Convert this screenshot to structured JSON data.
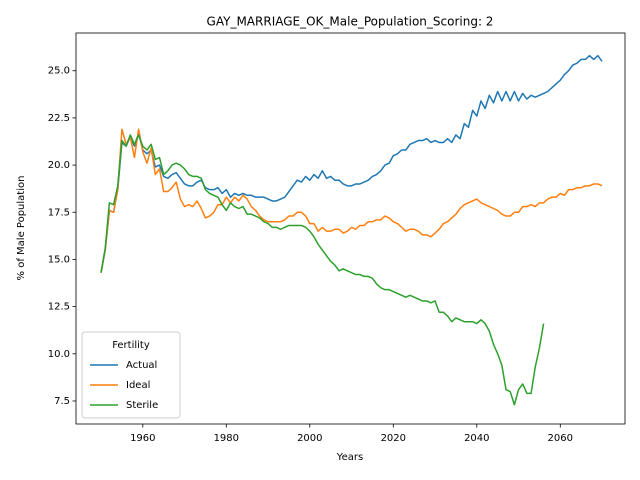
{
  "chart_data": {
    "type": "line",
    "title": "GAY_MARRIAGE_OK_Male_Population_Scoring: 2",
    "xlabel": "Years",
    "ylabel": "% of Male Population",
    "legend_title": "Fertility",
    "legend": "lower left",
    "x": [
      1950,
      1951,
      1952,
      1953,
      1954,
      1955,
      1956,
      1957,
      1958,
      1959,
      1960,
      1961,
      1962,
      1963,
      1964,
      1965,
      1966,
      1967,
      1968,
      1969,
      1970,
      1971,
      1972,
      1973,
      1974,
      1975,
      1976,
      1977,
      1978,
      1979,
      1980,
      1981,
      1982,
      1983,
      1984,
      1985,
      1986,
      1987,
      1988,
      1989,
      1990,
      1991,
      1992,
      1993,
      1994,
      1995,
      1996,
      1997,
      1998,
      1999,
      2000,
      2001,
      2002,
      2003,
      2004,
      2005,
      2006,
      2007,
      2008,
      2009,
      2010,
      2011,
      2012,
      2013,
      2014,
      2015,
      2016,
      2017,
      2018,
      2019,
      2020,
      2021,
      2022,
      2023,
      2024,
      2025,
      2026,
      2027,
      2028,
      2029,
      2030,
      2031,
      2032,
      2033,
      2034,
      2035,
      2036,
      2037,
      2038,
      2039,
      2040,
      2041,
      2042,
      2043,
      2044,
      2045,
      2046,
      2047,
      2048,
      2049,
      2050,
      2051,
      2052,
      2053,
      2054,
      2055,
      2056,
      2057,
      2058,
      2059,
      2060,
      2061,
      2062,
      2063,
      2064,
      2065,
      2066,
      2067,
      2068,
      2069,
      2070
    ],
    "series": [
      {
        "name": "Actual",
        "color": "#1f77b4",
        "values": [
          14.3,
          15.5,
          17.6,
          17.5,
          18.7,
          21.2,
          21.0,
          21.5,
          21.0,
          21.7,
          20.8,
          20.6,
          20.8,
          19.9,
          20.0,
          19.4,
          19.3,
          19.5,
          19.6,
          19.3,
          19.0,
          18.9,
          18.9,
          19.1,
          19.2,
          18.8,
          18.7,
          18.7,
          18.8,
          18.5,
          18.7,
          18.3,
          18.5,
          18.4,
          18.5,
          18.4,
          18.4,
          18.3,
          18.3,
          18.3,
          18.2,
          18.1,
          18.1,
          18.2,
          18.3,
          18.6,
          18.9,
          19.2,
          19.1,
          19.4,
          19.2,
          19.5,
          19.3,
          19.7,
          19.3,
          19.4,
          19.2,
          19.2,
          19.0,
          18.9,
          18.9,
          19.0,
          19.0,
          19.1,
          19.2,
          19.4,
          19.5,
          19.7,
          20.0,
          20.1,
          20.5,
          20.6,
          20.8,
          20.8,
          21.1,
          21.2,
          21.3,
          21.3,
          21.4,
          21.2,
          21.3,
          21.2,
          21.2,
          21.4,
          21.2,
          21.6,
          21.4,
          22.2,
          22.0,
          22.9,
          22.6,
          23.4,
          23.0,
          23.7,
          23.3,
          23.9,
          23.4,
          23.9,
          23.4,
          23.9,
          23.4,
          23.8,
          23.5,
          23.7,
          23.6,
          23.7,
          23.8,
          23.9,
          24.1,
          24.3,
          24.5,
          24.8,
          25.0,
          25.3,
          25.4,
          25.6,
          25.6,
          25.8,
          25.6,
          25.8,
          25.5
        ]
      },
      {
        "name": "Ideal",
        "color": "#ff7f0e",
        "values": [
          14.3,
          15.5,
          17.6,
          17.5,
          18.7,
          21.9,
          21.1,
          21.5,
          20.4,
          21.9,
          20.7,
          20.1,
          20.9,
          19.5,
          19.8,
          18.6,
          18.6,
          18.8,
          19.1,
          18.2,
          17.8,
          17.9,
          17.8,
          18.1,
          17.7,
          17.2,
          17.3,
          17.5,
          17.9,
          17.9,
          18.3,
          18.0,
          18.3,
          18.1,
          18.4,
          18.2,
          17.8,
          17.6,
          17.3,
          17.1,
          17.0,
          17.0,
          17.0,
          17.0,
          17.1,
          17.3,
          17.3,
          17.5,
          17.5,
          17.3,
          16.9,
          16.9,
          16.5,
          16.7,
          16.5,
          16.5,
          16.6,
          16.6,
          16.4,
          16.5,
          16.7,
          16.6,
          16.8,
          16.8,
          17.0,
          17.0,
          17.1,
          17.1,
          17.3,
          17.2,
          17.0,
          16.9,
          16.7,
          16.5,
          16.6,
          16.6,
          16.5,
          16.3,
          16.3,
          16.2,
          16.4,
          16.6,
          16.9,
          17.0,
          17.2,
          17.4,
          17.7,
          17.9,
          18.0,
          18.1,
          18.2,
          18.0,
          17.9,
          17.8,
          17.7,
          17.6,
          17.4,
          17.3,
          17.3,
          17.5,
          17.5,
          17.8,
          17.8,
          17.9,
          17.8,
          18.0,
          18.0,
          18.2,
          18.3,
          18.3,
          18.5,
          18.4,
          18.7,
          18.7,
          18.8,
          18.8,
          18.9,
          18.9,
          19.0,
          19.0,
          18.9
        ]
      },
      {
        "name": "Sterile",
        "color": "#2ca02c",
        "values": [
          14.3,
          15.6,
          18.0,
          17.9,
          18.9,
          21.3,
          21.0,
          21.6,
          21.1,
          21.6,
          21.0,
          20.8,
          21.1,
          20.3,
          20.4,
          19.5,
          19.7,
          20.0,
          20.1,
          20.0,
          19.8,
          19.5,
          19.4,
          19.4,
          19.3,
          18.7,
          18.5,
          18.4,
          18.3,
          17.9,
          17.6,
          18.0,
          17.8,
          17.7,
          17.8,
          17.4,
          17.4,
          17.3,
          17.2,
          17.0,
          16.9,
          16.7,
          16.7,
          16.6,
          16.7,
          16.8,
          16.8,
          16.8,
          16.8,
          16.7,
          16.5,
          16.2,
          15.8,
          15.5,
          15.2,
          14.9,
          14.7,
          14.4,
          14.5,
          14.4,
          14.3,
          14.2,
          14.2,
          14.1,
          14.1,
          14.0,
          13.7,
          13.5,
          13.4,
          13.4,
          13.3,
          13.2,
          13.1,
          13.0,
          13.1,
          13.0,
          12.9,
          12.8,
          12.8,
          12.7,
          12.8,
          12.2,
          12.2,
          12.0,
          11.7,
          11.9,
          11.8,
          11.7,
          11.7,
          11.7,
          11.6,
          11.8,
          11.6,
          11.2,
          10.5,
          10.0,
          9.4,
          8.1,
          8.0,
          7.3,
          8.1,
          8.4,
          7.9,
          7.9,
          9.3,
          10.3,
          11.6,
          null,
          null,
          null,
          null,
          null,
          null,
          null,
          null,
          null,
          null,
          null,
          null,
          null,
          null
        ]
      }
    ],
    "xlim": [
      1944,
      2075.5
    ],
    "ylim": [
      6.28,
      27.0
    ],
    "xticks": [
      1960,
      1980,
      2000,
      2020,
      2040,
      2060
    ],
    "yticks": [
      {
        "value": 7.5,
        "label": "7.5"
      },
      {
        "value": 10,
        "label": "10.0"
      },
      {
        "value": 12.5,
        "label": "12.5"
      },
      {
        "value": 15,
        "label": "15.0"
      },
      {
        "value": 17.5,
        "label": "17.5"
      },
      {
        "value": 20,
        "label": "20.0"
      },
      {
        "value": 22.5,
        "label": "22.5"
      },
      {
        "value": 25,
        "label": "25.0"
      }
    ],
    "grid": false
  }
}
